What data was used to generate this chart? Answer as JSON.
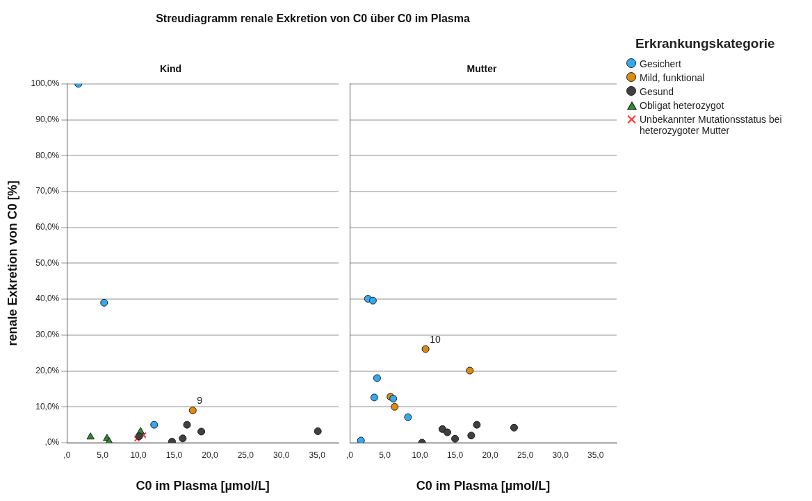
{
  "chart_data": [
    {
      "type": "scatter",
      "title": "Streudiagramm renale Exkretion von C0 über C0 im Plasma",
      "subtitle": "Kind",
      "xlabel": "C0 im Plasma [µmol/L]",
      "ylabel": "renale Exkretion von C0 [%]",
      "xlim": [
        0,
        38
      ],
      "xticks": [
        {
          "value": 0,
          "label": ",0"
        },
        {
          "value": 5,
          "label": "5,0"
        },
        {
          "value": 10,
          "label": "10,0"
        },
        {
          "value": 15,
          "label": "15,0"
        },
        {
          "value": 20,
          "label": "20,0"
        },
        {
          "value": 25,
          "label": "25,0"
        },
        {
          "value": 30,
          "label": "30,0"
        },
        {
          "value": 35,
          "label": "35,0"
        }
      ],
      "ylim": [
        0,
        100
      ],
      "yticks": [
        {
          "value": 0,
          "label": ",0%"
        },
        {
          "value": 10,
          "label": "10,0%"
        },
        {
          "value": 20,
          "label": "20,0%"
        },
        {
          "value": 30,
          "label": "30,0%"
        },
        {
          "value": 40,
          "label": "40,0%"
        },
        {
          "value": 50,
          "label": "50,0%"
        },
        {
          "value": 60,
          "label": "60,0%"
        },
        {
          "value": 70,
          "label": "70,0%"
        },
        {
          "value": 80,
          "label": "80,0%"
        },
        {
          "value": 90,
          "label": "90,0%"
        },
        {
          "value": 100,
          "label": "100,0%"
        }
      ],
      "grid": "y",
      "legend": "right",
      "legend_title": "Erkrankungskategorie",
      "annotations": [
        {
          "text": "9",
          "x": 17.6,
          "y": 9.0
        }
      ],
      "series": [
        {
          "name": "Gesichert",
          "color": "#33aaee",
          "marker": "circle",
          "x": [
            1.6,
            5.2,
            12.2
          ],
          "values": [
            100,
            39.0,
            5.0
          ]
        },
        {
          "name": "Mild, funktional",
          "color": "#dd8a10",
          "marker": "circle",
          "x": [
            17.6
          ],
          "values": [
            9.0
          ]
        },
        {
          "name": "Gesund",
          "color": "#404040",
          "marker": "circle",
          "x": [
            10.1,
            14.7,
            16.2,
            16.8,
            18.8,
            35.1
          ],
          "values": [
            1.8,
            0.3,
            1.2,
            5.0,
            3.1,
            3.2
          ]
        },
        {
          "name": "Obligat heterozygot",
          "color": "#2e8b2e",
          "marker": "triangle",
          "x": [
            3.3,
            5.6,
            5.9,
            10.3
          ],
          "values": [
            1.6,
            1.2,
            0.3,
            3.1
          ]
        },
        {
          "name": "Unbekannter Mutationsstatus bei heterozygoter Mutter",
          "color": "#ff3333",
          "marker": "cross",
          "x": [
            9.8,
            10.7
          ],
          "values": [
            1.1,
            2.1
          ]
        }
      ]
    },
    {
      "type": "scatter",
      "subtitle": "Mutter",
      "xlabel": "C0 im Plasma [µmol/L]",
      "xlim": [
        0,
        38
      ],
      "xticks": [
        {
          "value": 0,
          "label": ",0"
        },
        {
          "value": 5,
          "label": "5,0"
        },
        {
          "value": 10,
          "label": "10,0"
        },
        {
          "value": 15,
          "label": "15,0"
        },
        {
          "value": 20,
          "label": "20,0"
        },
        {
          "value": 25,
          "label": "25,0"
        },
        {
          "value": 30,
          "label": "30,0"
        },
        {
          "value": 35,
          "label": "35,0"
        }
      ],
      "ylim": [
        0,
        100
      ],
      "yticks": [
        0,
        10,
        20,
        30,
        40,
        50,
        60,
        70,
        80,
        90,
        100
      ],
      "grid": "y",
      "tick_labels": "x",
      "annotations": [
        {
          "text": "10",
          "x": 10.8,
          "y": 26.1
        }
      ],
      "series": [
        {
          "color": "#33aaee",
          "marker": "circle",
          "x": [
            1.6,
            2.6,
            3.3,
            3.9,
            3.5,
            6.2,
            8.3
          ],
          "values": [
            0.6,
            40.1,
            39.6,
            18.0,
            12.6,
            12.3,
            7.1
          ]
        },
        {
          "color": "#dd8a10",
          "marker": "circle",
          "x": [
            5.8,
            6.4,
            10.8,
            17.1
          ],
          "values": [
            12.8,
            10.0,
            26.1,
            20.1
          ]
        },
        {
          "color": "#404040",
          "marker": "circle",
          "x": [
            10.3,
            13.2,
            13.9,
            15.0,
            17.3,
            18.1,
            23.4
          ],
          "values": [
            0.0,
            3.8,
            2.9,
            1.1,
            2.0,
            5.0,
            4.2
          ]
        }
      ]
    }
  ]
}
